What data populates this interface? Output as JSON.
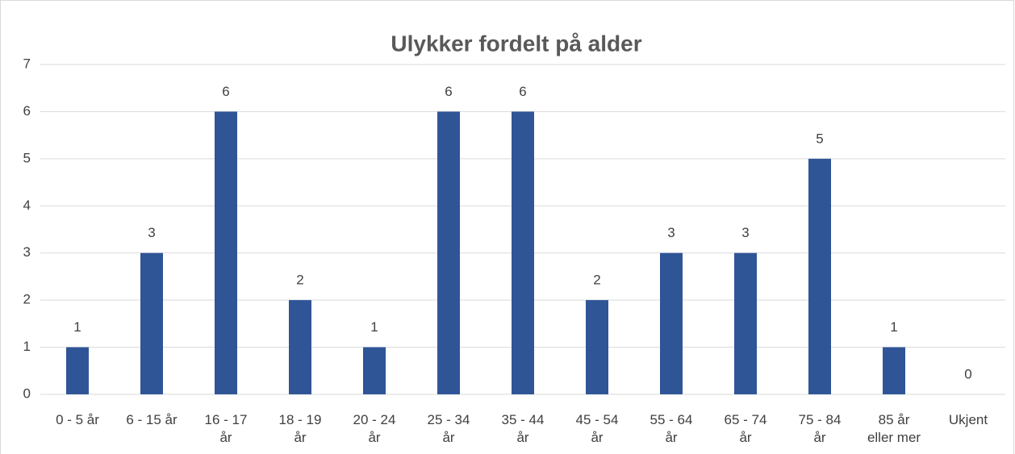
{
  "chart_data": {
    "type": "bar",
    "title": "Ulykker fordelt på alder",
    "categories": [
      "0 - 5 år",
      "6 - 15 år",
      "16 - 17 år",
      "18 - 19 år",
      "20 - 24 år",
      "25 - 34 år",
      "35 - 44 år",
      "45 - 54 år",
      "55 - 64 år",
      "65 - 74 år",
      "75 - 84 år",
      "85 år eller mer",
      "Ukjent"
    ],
    "values": [
      1,
      3,
      6,
      2,
      1,
      6,
      6,
      2,
      3,
      3,
      5,
      1,
      0
    ],
    "color": "#2f5597",
    "ylim": [
      0,
      7
    ],
    "yticks": [
      0,
      1,
      2,
      3,
      4,
      5,
      6,
      7
    ],
    "grid": true
  }
}
